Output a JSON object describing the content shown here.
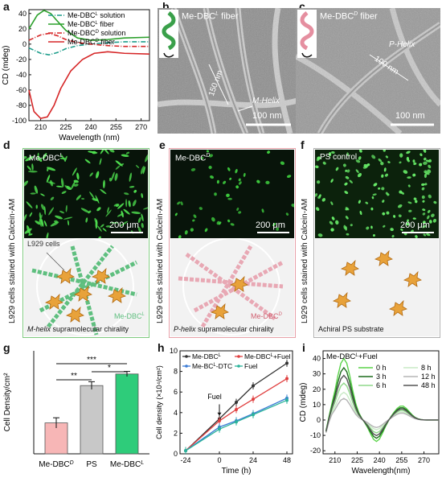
{
  "panels": {
    "a": {
      "letter": "a",
      "legend": [
        "Me-DBC",
        "solution",
        "Me-DBC",
        "fiber",
        "Me-DBC",
        "solution",
        "Me-DBC",
        "fiber"
      ],
      "sup": [
        "L",
        "D"
      ],
      "ylabel": "CD (mdeg)",
      "xlabel": "Wavelength (nm)",
      "yticks": [
        "40",
        "20",
        "0",
        "-20",
        "-40",
        "-60",
        "-80",
        "-100"
      ],
      "xticks": [
        "210",
        "225",
        "240",
        "255",
        "270"
      ]
    },
    "b": {
      "letter": "b",
      "title": "Me-DBC",
      "title_sup": "L",
      "title_suffix": " fiber",
      "helix": "M-Helix",
      "dim": "150 nm",
      "scale": "100 nm"
    },
    "c": {
      "letter": "c",
      "title": "Me-DBC",
      "title_sup": "D",
      "title_suffix": " fiber",
      "helix": "P-Helix",
      "dim": "100 nm",
      "scale": "100 nm"
    },
    "d": {
      "letter": "d",
      "sample": "Me-DBC",
      "sample_sup": "L",
      "scale": "200 μm",
      "cells_label": "L929 cells",
      "polymer": "Me-DBC",
      "polymer_sup": "L",
      "caption_italic": "M-helix",
      "caption_rest": " supramolecular chirality",
      "side": "L929 cells stained with Calcein-AM"
    },
    "e": {
      "letter": "e",
      "sample": "Me-DBC",
      "sample_sup": "D",
      "scale": "200 μm",
      "polymer": "Me-DBC",
      "polymer_sup": "D",
      "caption_italic": "P-helix",
      "caption_rest": " supramolecular chirality",
      "side": "L929 cells stained with Calcein-AM"
    },
    "f": {
      "letter": "f",
      "sample": "PS control",
      "scale": "200 μm",
      "caption": "Achiral PS substrate",
      "side": "L929 cells stained with Calcein-AM"
    },
    "g": {
      "letter": "g",
      "ylabel": "Cell Density/cm²",
      "sig": [
        "***",
        "**",
        "*"
      ]
    },
    "h": {
      "letter": "h",
      "ylabel": "Cell density (×10⁴/cm²)",
      "xlabel": "Time (h)",
      "fuel": "Fuel",
      "legend": [
        "Me-DBC",
        "Me-DBC",
        "+Fuel",
        "Me-BC",
        "-DTC",
        "Fuel"
      ],
      "sup": "L"
    },
    "i": {
      "letter": "i",
      "title": "Me-DBC",
      "title_sup": "L",
      "title_suffix": "+Fuel",
      "ylabel": "CD (mdeg)",
      "xlabel": "Wavelength(nm)",
      "legend": [
        "0 h",
        "3 h",
        "6 h",
        "8 h",
        "12 h",
        "48 h"
      ]
    }
  },
  "colors": {
    "dbcl": "#2ca02c",
    "dbcd": "#d62728",
    "teal": "#1f9e8c",
    "frame_d": "#7fc97f",
    "frame_e": "#e7a0a8",
    "frame_f": "#b0b0b0"
  },
  "chart_data": [
    {
      "id": "a",
      "type": "line",
      "xlabel": "Wavelength (nm)",
      "ylabel": "CD (mdeg)",
      "xlim": [
        203,
        275
      ],
      "ylim": [
        -100,
        45
      ],
      "series": [
        {
          "name": "Me-DBCL solution",
          "x": [
            203,
            210,
            215,
            220,
            225,
            232,
            240,
            250,
            260,
            275
          ],
          "y": [
            -5,
            -12,
            -14,
            -11,
            -6,
            -2,
            0,
            2,
            3,
            3
          ]
        },
        {
          "name": "Me-DBCL fiber",
          "x": [
            203,
            208,
            212,
            216,
            220,
            225,
            232,
            240,
            250,
            260,
            275
          ],
          "y": [
            20,
            38,
            44,
            40,
            30,
            18,
            8,
            5,
            6,
            8,
            9
          ]
        },
        {
          "name": "Me-DBCD solution",
          "x": [
            203,
            210,
            215,
            220,
            225,
            232,
            240,
            250,
            260,
            275
          ],
          "y": [
            5,
            12,
            14,
            11,
            6,
            2,
            0,
            -2,
            -3,
            -3
          ]
        },
        {
          "name": "Me-DBCD fiber",
          "x": [
            203,
            206,
            210,
            214,
            218,
            222,
            228,
            235,
            242,
            250,
            260,
            275
          ],
          "y": [
            -60,
            -88,
            -97,
            -95,
            -80,
            -58,
            -35,
            -20,
            -12,
            -10,
            -12,
            -13
          ]
        }
      ]
    },
    {
      "id": "g",
      "type": "bar",
      "ylabel": "Cell Density/cm²",
      "categories": [
        "Me-DBCD",
        "PS",
        "Me-DBCL"
      ],
      "values": [
        12,
        26.5,
        31
      ],
      "errors": [
        2,
        1.5,
        1
      ],
      "ylim": [
        0,
        40
      ]
    },
    {
      "id": "h",
      "type": "line",
      "xlabel": "Time (h)",
      "ylabel": "Cell density (×10⁴/cm²)",
      "x": [
        -24,
        0,
        12,
        24,
        48
      ],
      "xticks": [
        "-24",
        "0",
        "24",
        "48"
      ],
      "yticks": [
        "0",
        "2",
        "4",
        "6",
        "8",
        "10"
      ],
      "ylim": [
        0,
        10
      ],
      "series": [
        {
          "name": "Me-DBCL",
          "values": [
            0.3,
            3.4,
            5.0,
            6.6,
            8.8
          ]
        },
        {
          "name": "Me-DBCL+Fuel",
          "values": [
            0.3,
            3.2,
            4.3,
            5.3,
            7.3
          ]
        },
        {
          "name": "Me-BCL-DTC",
          "values": [
            0.3,
            2.6,
            3.2,
            3.9,
            5.4
          ]
        },
        {
          "name": "Fuel",
          "values": [
            0.3,
            2.4,
            3.1,
            3.8,
            5.2
          ]
        }
      ]
    },
    {
      "id": "i",
      "type": "line",
      "xlabel": "Wavelength(nm)",
      "ylabel": "CD (mdeg)",
      "xticks": [
        "210",
        "225",
        "240",
        "255",
        "270"
      ],
      "yticks": [
        "-20",
        "-10",
        "0",
        "10",
        "20",
        "30",
        "40"
      ],
      "xlim": [
        202,
        280
      ],
      "ylim": [
        -22,
        45
      ],
      "series": [
        {
          "name": "0 h",
          "peak": 40,
          "color": "#5bd44a"
        },
        {
          "name": "3 h",
          "peak": 34,
          "color": "#1c6b1c"
        },
        {
          "name": "6 h",
          "peak": 24,
          "color": "#8fd88a"
        },
        {
          "name": "8 h",
          "peak": 18,
          "color": "#c9eac6"
        },
        {
          "name": "12 h",
          "peak": 14,
          "color": "#b5b5b5"
        },
        {
          "name": "48 h",
          "peak": 29,
          "color": "#555555"
        }
      ]
    }
  ]
}
